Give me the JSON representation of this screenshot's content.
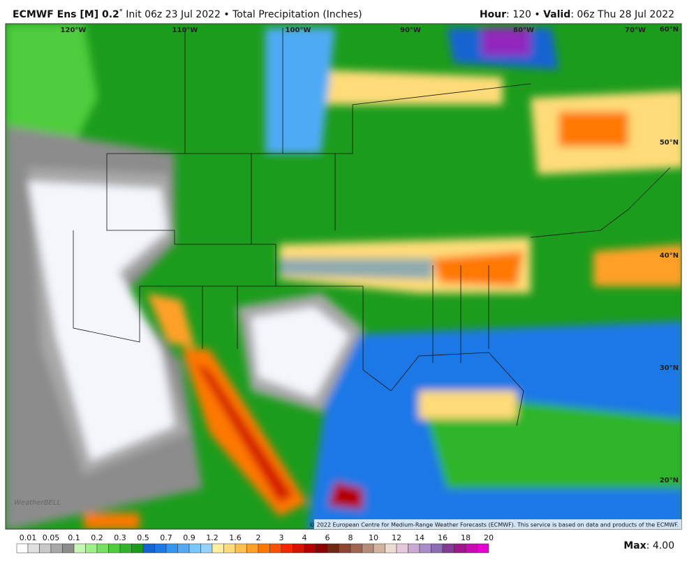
{
  "header": {
    "model": "ECMWF Ens [M] 0.2",
    "degree": "°",
    "init": " Init 06z 23 Jul 2022 • Total Precipitation (Inches)",
    "hour_label": "Hour",
    "hour_value": ": 120 • ",
    "valid_label": "Valid",
    "valid_value": ": 06z Thu 28 Jul 2022"
  },
  "map": {
    "longitudes": [
      "120°W",
      "110°W",
      "100°W",
      "90°W",
      "80°W",
      "70°W"
    ],
    "latitudes": [
      "60°N",
      "50°N",
      "40°N",
      "30°N",
      "20°N"
    ],
    "watermark": "WeatherBELL",
    "copyright": "© 2022 European Centre for Medium-Range Weather Forecasts (ECMWF). This service is based on data and products of the ECMWF."
  },
  "legend": {
    "labels": [
      "0.01",
      "0.05",
      "0.1",
      "0.2",
      "0.3",
      "0.5",
      "0.7",
      "0.9",
      "1.2",
      "1.6",
      "2",
      "3",
      "4",
      "6",
      "8",
      "10",
      "12",
      "14",
      "16",
      "18",
      "20"
    ],
    "colors": [
      "#ffffff",
      "#e0e0e0",
      "#c8c8c8",
      "#a8a8a8",
      "#8c8c8c",
      "#c6f7b4",
      "#9ff08a",
      "#77e060",
      "#4fcc3c",
      "#2fb52a",
      "#1c9c1c",
      "#1464d2",
      "#1e78e6",
      "#3296f0",
      "#50aaf5",
      "#78c8fa",
      "#96d2fa",
      "#fff0a0",
      "#ffdc78",
      "#ffc050",
      "#ffa028",
      "#ff7800",
      "#ff5000",
      "#f02800",
      "#d21400",
      "#b40000",
      "#8c0000",
      "#6e2814",
      "#8c4632",
      "#a06450",
      "#b48c78",
      "#d2b4a0",
      "#ecdcd2",
      "#e6c8dc",
      "#c8aad2",
      "#aa8cc8",
      "#8c6eb4",
      "#823c96",
      "#a0148c",
      "#c80ab4",
      "#e600d2"
    ],
    "max_label": "Max",
    "max_value": ": 4.00"
  }
}
